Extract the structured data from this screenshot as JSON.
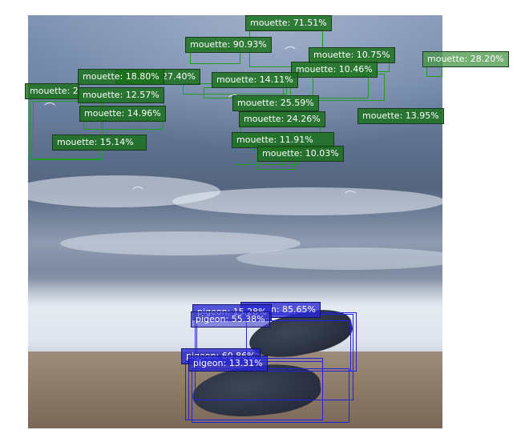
{
  "labels": {
    "m1": "mouette: 71.51%",
    "m2": "mouette: 90.93%",
    "m3": "mouette: 10.75%",
    "m4": "mouette: 28.20%",
    "m5": "mouette: 10.46%",
    "m6": "mouette: 18.80%",
    "m7": "27.40%",
    "m8": "mouette: 14.11%",
    "m9": "mouette: 2",
    "m10": "mouette: 12.57%",
    "m11": "mouette: 25.59%",
    "m12": "mouette: 14.96%",
    "m13": "mouette: 13.95%",
    "m14": "mouette: 24.26%",
    "m15": "mouette: 15.14%",
    "m16": "mouette: 11.91%",
    "m17": "mouette: 10.03%",
    "p1": "pigeon: 15.28%",
    "p2": "n: 85.65%",
    "p3": "pigeon: 55.38%",
    "p4": "pigeon: 60.86%",
    "p5": "pigeon: 13.31%"
  },
  "colors": {
    "mouette_box": "#1f9d1f",
    "pigeon_box": "#2222dd"
  }
}
